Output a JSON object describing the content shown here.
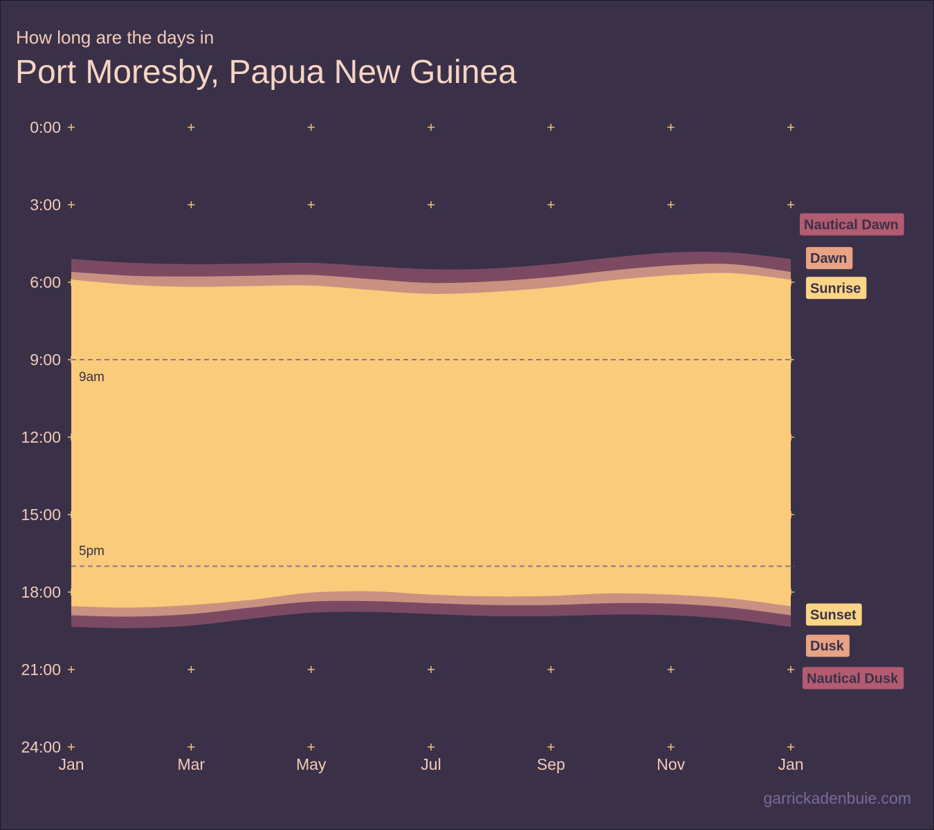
{
  "header": {
    "subtitle": "How long are the days in",
    "title": "Port Moresby, Papua New Guinea"
  },
  "footer": {
    "credit": "garrickadenbuie.com"
  },
  "chart_data": {
    "type": "area",
    "title": "Port Moresby, Papua New Guinea",
    "subtitle": "How long are the days in",
    "xlabel": "",
    "ylabel": "",
    "x_ticks": [
      "Jan",
      "Mar",
      "May",
      "Jul",
      "Sep",
      "Nov",
      "Jan"
    ],
    "y_ticks": [
      "0:00",
      "3:00",
      "6:00",
      "9:00",
      "12:00",
      "15:00",
      "18:00",
      "21:00",
      "24:00"
    ],
    "ylim": [
      0,
      24
    ],
    "y_reversed": true,
    "x_months": [
      "Jan 1",
      "Feb 1",
      "Mar 1",
      "Apr 1",
      "May 1",
      "Jun 1",
      "Jul 1",
      "Aug 1",
      "Sep 1",
      "Oct 1",
      "Nov 1",
      "Dec 1",
      "Jan 1"
    ],
    "reference_lines": [
      {
        "label": "9am",
        "y": 9
      },
      {
        "label": "5pm",
        "y": 17
      }
    ],
    "series": [
      {
        "name": "Nautical Dawn",
        "color": "#b25b71",
        "values": [
          5.1,
          5.25,
          5.3,
          5.28,
          5.25,
          5.38,
          5.5,
          5.47,
          5.3,
          5.05,
          4.85,
          4.85,
          5.1
        ]
      },
      {
        "name": "Dawn",
        "color": "#e8a384",
        "values": [
          5.6,
          5.75,
          5.78,
          5.75,
          5.72,
          5.88,
          6.03,
          5.97,
          5.8,
          5.55,
          5.35,
          5.3,
          5.6
        ]
      },
      {
        "name": "Sunrise",
        "color": "#fbd586",
        "values": [
          5.9,
          6.1,
          6.18,
          6.15,
          6.13,
          6.3,
          6.45,
          6.38,
          6.2,
          5.93,
          5.73,
          5.65,
          5.9
        ]
      },
      {
        "name": "Sunset",
        "color": "#fbd586",
        "values": [
          18.55,
          18.6,
          18.5,
          18.3,
          18.02,
          17.97,
          18.1,
          18.17,
          18.15,
          18.05,
          18.1,
          18.25,
          18.55
        ]
      },
      {
        "name": "Dusk",
        "color": "#e8a384",
        "values": [
          18.9,
          18.95,
          18.85,
          18.6,
          18.37,
          18.35,
          18.43,
          18.5,
          18.5,
          18.43,
          18.45,
          18.6,
          18.9
        ]
      },
      {
        "name": "Nautical Dusk",
        "color": "#b25b71",
        "values": [
          19.35,
          19.4,
          19.3,
          19.03,
          18.8,
          18.77,
          18.85,
          18.93,
          18.93,
          18.87,
          18.9,
          19.05,
          19.35
        ]
      }
    ],
    "colors": {
      "background": "#3a3149",
      "daylight": "#f9cb7b",
      "civil_twilight": "#c99181",
      "nautical_twilight": "#7b4a62",
      "grid_marker": "#f2c47e",
      "reference_line": "#8a7c83"
    },
    "grid": "plus-markers",
    "legend": "right"
  }
}
